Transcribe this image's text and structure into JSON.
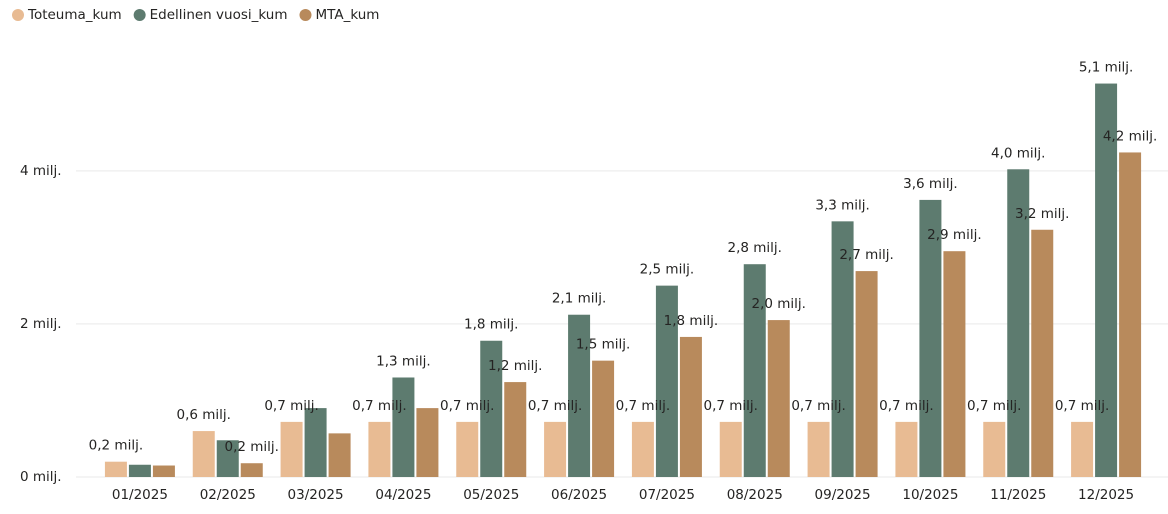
{
  "chart_data": {
    "type": "bar",
    "categories": [
      "01/2025",
      "02/2025",
      "03/2025",
      "04/2025",
      "05/2025",
      "06/2025",
      "07/2025",
      "08/2025",
      "09/2025",
      "10/2025",
      "11/2025",
      "12/2025"
    ],
    "series": [
      {
        "name": "Toteuma_kum",
        "color": "#e8bb93",
        "values": [
          0.2,
          0.6,
          0.72,
          0.72,
          0.72,
          0.72,
          0.72,
          0.72,
          0.72,
          0.72,
          0.72,
          0.72
        ],
        "value_labels": [
          "0,2 milj.",
          "0,6 milj.",
          "0,7 milj.",
          "0,7 milj.",
          "0,7 milj.",
          "0,7 milj.",
          "0,7 milj.",
          "0,7 milj.",
          "0,7 milj.",
          "0,7 milj.",
          "0,7 milj.",
          "0,7 milj."
        ]
      },
      {
        "name": "Edellinen vuosi_kum",
        "color": "#5d7b6f",
        "values": [
          0.16,
          0.48,
          0.9,
          1.3,
          1.78,
          2.12,
          2.5,
          2.78,
          3.34,
          3.62,
          4.02,
          5.14
        ],
        "value_labels": [
          null,
          null,
          null,
          "1,3 milj.",
          "1,8 milj.",
          "2,1 milj.",
          "2,5 milj.",
          "2,8 milj.",
          "3,3 milj.",
          "3,6 milj.",
          "4,0 milj.",
          "5,1 milj."
        ]
      },
      {
        "name": "MTA_kum",
        "color": "#b88a5c",
        "values": [
          0.15,
          0.18,
          0.57,
          0.9,
          1.24,
          1.52,
          1.83,
          2.05,
          2.69,
          2.95,
          3.23,
          4.24
        ],
        "value_labels": [
          null,
          "0,2 milj.",
          null,
          null,
          "1,2 milj.",
          "1,5 milj.",
          "1,8 milj.",
          "2,0 milj.",
          "2,7 milj.",
          "2,9 milj.",
          "3,2 milj.",
          "4,2 milj."
        ]
      }
    ],
    "ylim": [
      0,
      5.5
    ],
    "yticks": [
      {
        "value": 0,
        "label": "0 milj."
      },
      {
        "value": 2,
        "label": "2 milj."
      },
      {
        "value": 4,
        "label": "4 milj."
      }
    ],
    "grid": true,
    "legend": "top-left"
  }
}
